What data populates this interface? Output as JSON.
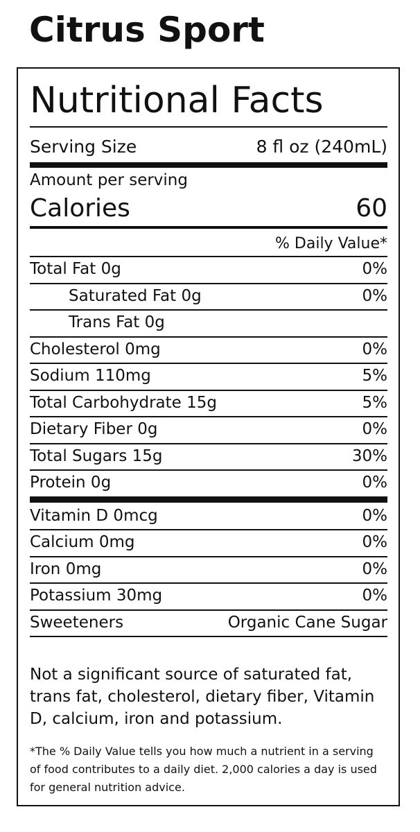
{
  "product_name": "Citrus Sport",
  "label": {
    "title": "Nutritional Facts",
    "serving_size_label": "Serving Size",
    "serving_size_value": "8 fl oz (240mL)",
    "amount_per_serving": "Amount per serving",
    "calories_label": "Calories",
    "calories_value": "60",
    "daily_value_header": "% Daily Value*",
    "nutrients": [
      {
        "name": "Total Fat 0g",
        "dv": "0%"
      },
      {
        "name": "Saturated Fat 0g",
        "dv": "0%"
      },
      {
        "name": "Trans Fat 0g",
        "dv": ""
      },
      {
        "name": "Cholesterol 0mg",
        "dv": "0%"
      },
      {
        "name": "Sodium 110mg",
        "dv": "5%"
      },
      {
        "name": "Total Carbohydrate 15g",
        "dv": "5%"
      },
      {
        "name": "Dietary Fiber 0g",
        "dv": "0%"
      },
      {
        "name": "Total Sugars 15g",
        "dv": "30%"
      },
      {
        "name": "Protein 0g",
        "dv": "0%"
      }
    ],
    "vitamins": [
      {
        "name": "Vitamin D 0mcg",
        "dv": "0%"
      },
      {
        "name": "Calcium 0mg",
        "dv": "0%"
      },
      {
        "name": "Iron 0mg",
        "dv": "0%"
      },
      {
        "name": "Potassium 30mg",
        "dv": "0%"
      }
    ],
    "sweeteners_label": "Sweeteners",
    "sweeteners_value": "Organic Cane Sugar",
    "note": "Not a significant source of saturated fat, trans fat, cholesterol, dietary fiber, Vitamin D, calcium, iron and potassium.",
    "footnote": "*The % Daily Value tells you how much a nutrient in a serving of food contributes to a daily diet. 2,000 calories a day is used for general nutrition advice."
  }
}
